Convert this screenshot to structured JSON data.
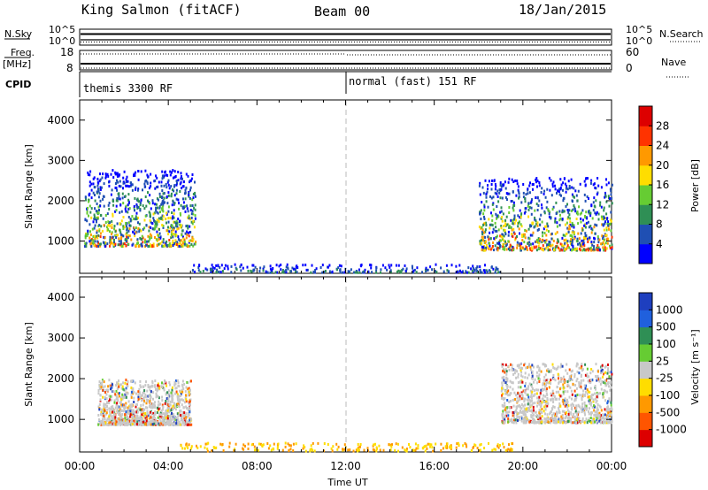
{
  "header": {
    "station": "King Salmon (fitACF)",
    "beam": "Beam 00",
    "date": "18/Jan/2015"
  },
  "top_strips": {
    "nsky_label": "N.Sky",
    "nsky_ticks": [
      "10^5",
      "10^0"
    ],
    "nsearch_label": "N.Search",
    "freq_label": "Freq.",
    "freq_unit": "[MHz]",
    "freq_ticks": [
      "18",
      "8"
    ],
    "nave_label": "Nave",
    "nave_ticks": [
      "60",
      "0"
    ],
    "cpid_label": "CPID",
    "cpid_segments": [
      "themis 3300 RF",
      "normal (fast) 151 RF"
    ]
  },
  "colorbars": {
    "power": {
      "label": "Power [dB]",
      "ticks": [
        "4",
        "8",
        "12",
        "16",
        "20",
        "24",
        "28"
      ],
      "colors": [
        "#0000ff",
        "#1f4fb3",
        "#2f8f55",
        "#66cc33",
        "#ffdd00",
        "#ff9900",
        "#ff3300",
        "#dd0000"
      ]
    },
    "velocity": {
      "label": "Velocity [m s⁻¹]",
      "ticks": [
        "1000",
        "500",
        "100",
        "25",
        "-25",
        "-100",
        "-500",
        "-1000"
      ],
      "colors": [
        "#1e3fbf",
        "#2060dd",
        "#2f8f55",
        "#66cc33",
        "#c8c8c8",
        "#ffdd00",
        "#ff9900",
        "#ff5500",
        "#dd0000"
      ]
    }
  },
  "chart_data": [
    {
      "type": "heatmap",
      "title": "Power",
      "ylabel": "Slant Range [km]",
      "xlabel": "Time UT",
      "x_ticks": [
        "00:00",
        "04:00",
        "08:00",
        "12:00",
        "16:00",
        "20:00",
        "00:00"
      ],
      "xlim_hours": [
        0,
        24
      ],
      "y_ticks": [
        1000,
        2000,
        3000,
        4000
      ],
      "ylim": [
        200,
        4500
      ],
      "cpid_change_hour": 12.0,
      "scatter_regions": [
        {
          "t_start": 0.2,
          "t_end": 5.2,
          "r_low": 900,
          "r_high": 2800,
          "peak_power_db": 24
        },
        {
          "t_start": 18.0,
          "t_end": 24.0,
          "r_low": 800,
          "r_high": 2600,
          "peak_power_db": 26
        },
        {
          "t_start": 5.0,
          "t_end": 19.0,
          "r_low": 250,
          "r_high": 450,
          "peak_power_db": 10
        }
      ]
    },
    {
      "type": "heatmap",
      "title": "Velocity",
      "ylabel": "Slant Range [km]",
      "xlabel": "Time UT",
      "x_ticks": [
        "00:00",
        "04:00",
        "08:00",
        "12:00",
        "16:00",
        "20:00",
        "00:00"
      ],
      "xlim_hours": [
        0,
        24
      ],
      "y_ticks": [
        1000,
        2000,
        3000,
        4000
      ],
      "ylim": [
        200,
        4500
      ],
      "cpid_change_hour": 12.0,
      "ground_scatter_regions": [
        {
          "t_start": 0.8,
          "t_end": 5.0,
          "r_low": 900,
          "r_high": 2000
        },
        {
          "t_start": 19.0,
          "t_end": 24.0,
          "r_low": 950,
          "r_high": 2400
        }
      ]
    }
  ],
  "axis": {
    "x_title": "Time UT"
  }
}
